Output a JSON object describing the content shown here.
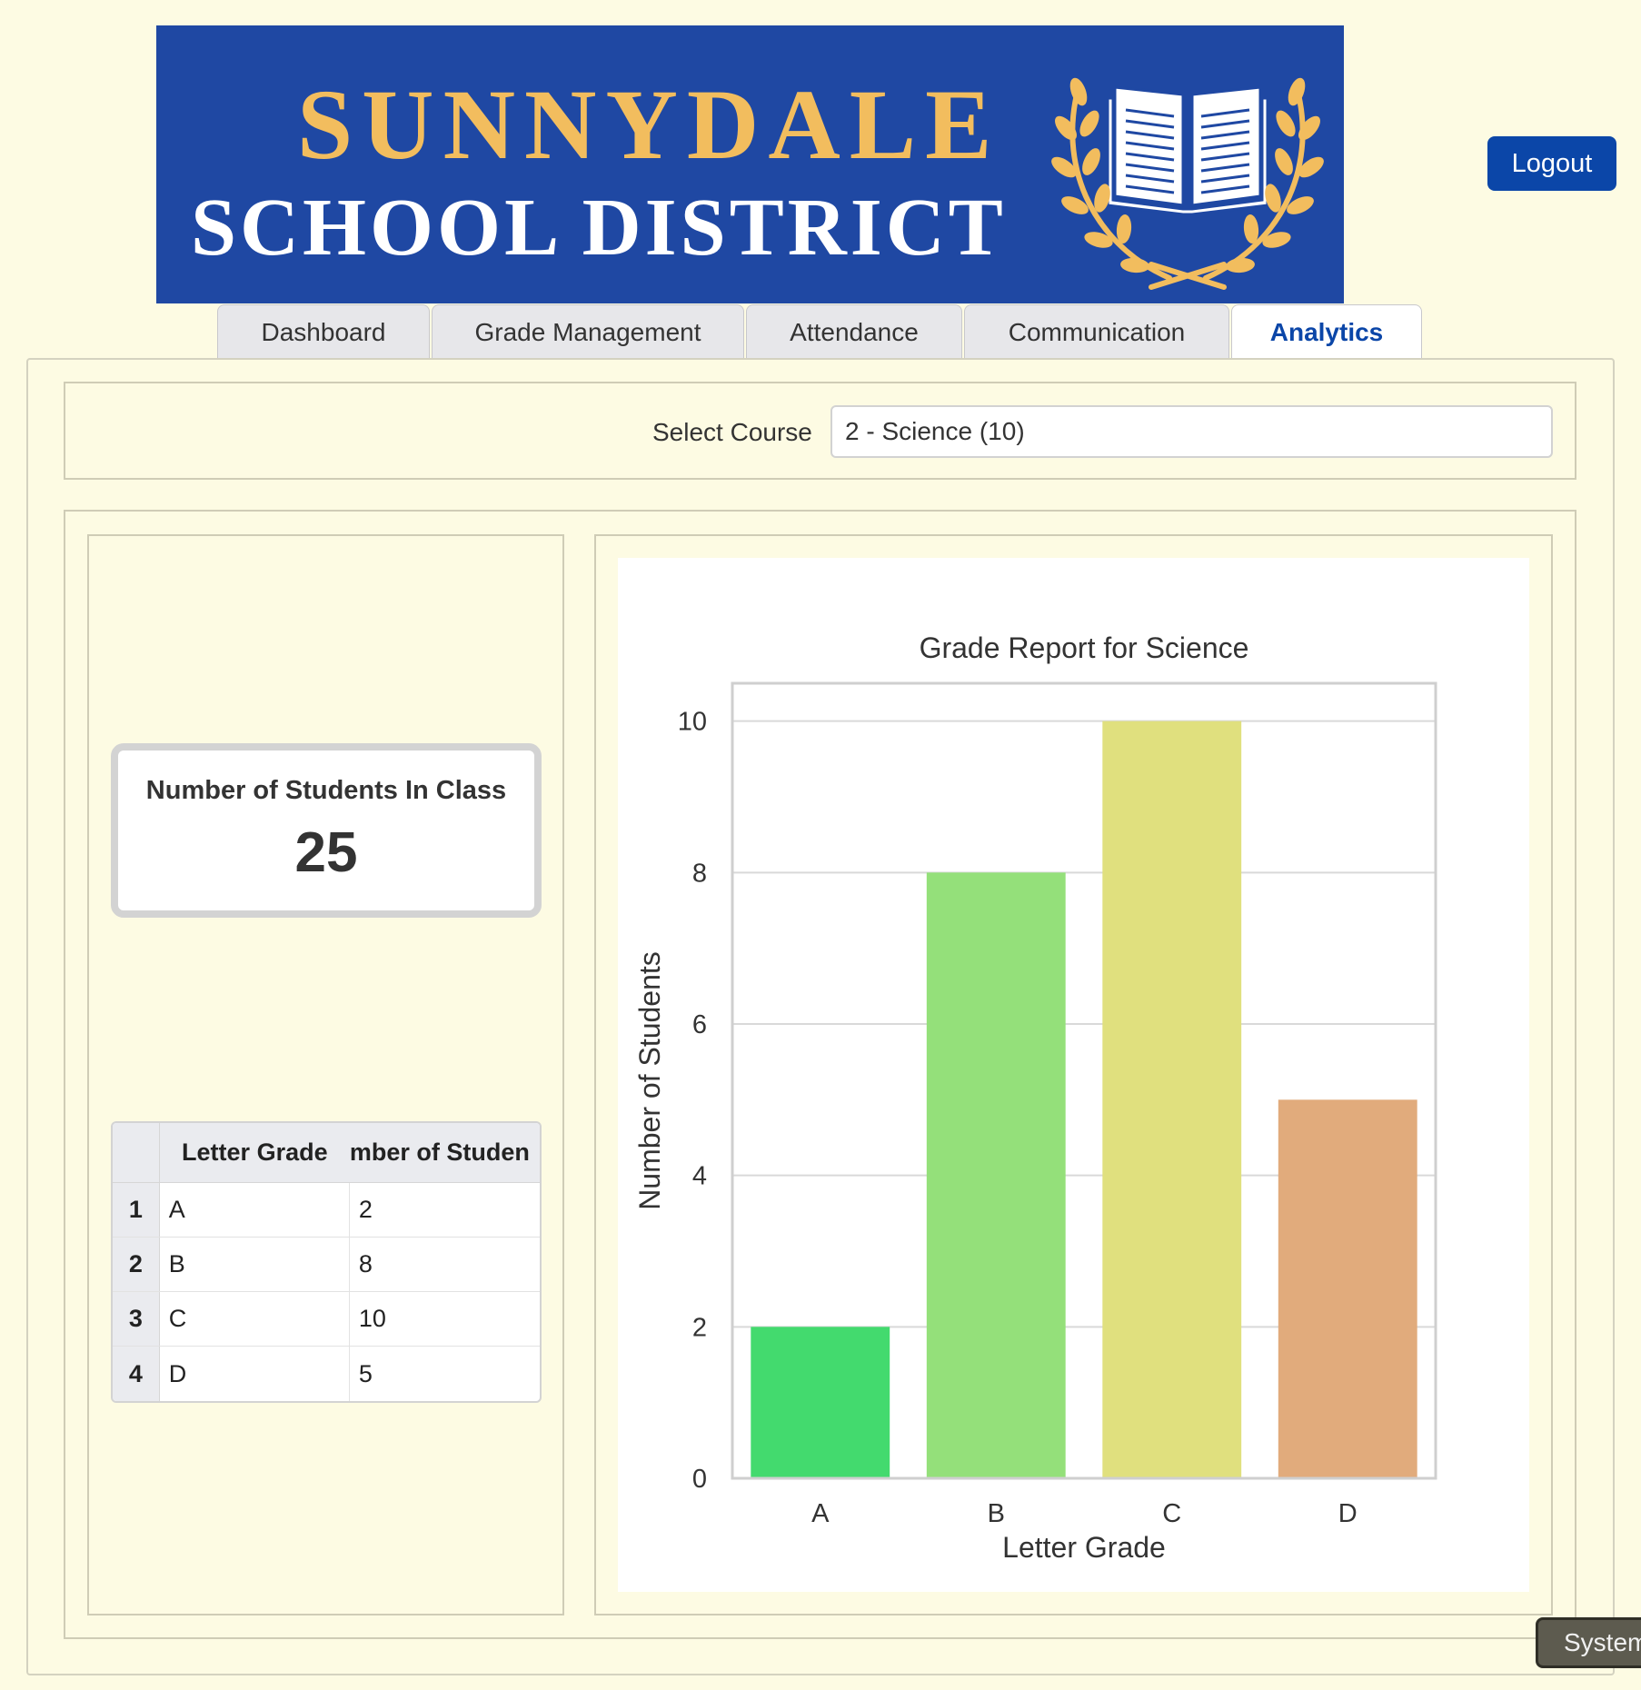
{
  "banner": {
    "line1": "SUNNYDALE",
    "line2": "SCHOOL DISTRICT",
    "emblem_icon": "book-laurel-icon",
    "bg_color": "#1f48a3",
    "accent_color": "#f2bd5e"
  },
  "header": {
    "logout_label": "Logout"
  },
  "tabs": [
    {
      "label": "Dashboard",
      "active": false
    },
    {
      "label": "Grade Management",
      "active": false
    },
    {
      "label": "Attendance",
      "active": false
    },
    {
      "label": "Communication",
      "active": false
    },
    {
      "label": "Analytics",
      "active": true
    }
  ],
  "course": {
    "label": "Select Course",
    "selected": "2 - Science (10)"
  },
  "metric": {
    "label": "Number of Students In Class",
    "value": "25"
  },
  "grid": {
    "columns": [
      "Letter Grade",
      "Number of Students"
    ],
    "visible_columns": [
      "Letter Grade",
      "mber of Studen"
    ],
    "rows": [
      {
        "index": "1",
        "grade": "A",
        "count": "2"
      },
      {
        "index": "2",
        "grade": "B",
        "count": "8"
      },
      {
        "index": "3",
        "grade": "C",
        "count": "10"
      },
      {
        "index": "4",
        "grade": "D",
        "count": "5"
      }
    ]
  },
  "chart_data": {
    "type": "bar",
    "title": "Grade Report for Science",
    "xlabel": "Letter Grade",
    "ylabel": "Number of Students",
    "categories": [
      "A",
      "B",
      "C",
      "D"
    ],
    "values": [
      2,
      8,
      10,
      5
    ],
    "colors": [
      "#43da6e",
      "#94e07a",
      "#e0e07e",
      "#e1ab7c"
    ],
    "ylim": [
      0,
      10.5
    ],
    "yticks": [
      0,
      2,
      4,
      6,
      8,
      10
    ],
    "grid": true,
    "legend": "none"
  },
  "system_toast": {
    "label": "System"
  }
}
